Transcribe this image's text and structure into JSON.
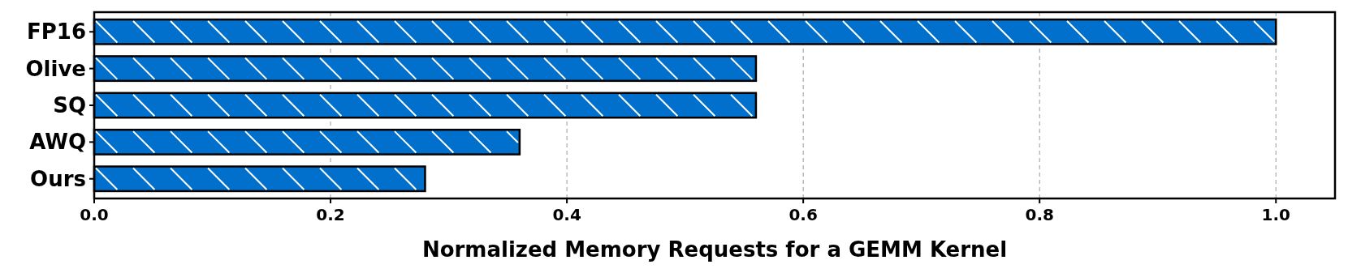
{
  "chart_data": {
    "type": "bar",
    "orientation": "horizontal",
    "xlabel": "Normalized Memory Requests for a GEMM Kernel",
    "categories": [
      "FP16",
      "Olive",
      "SQ",
      "AWQ",
      "Ours"
    ],
    "values": [
      1.0,
      0.56,
      0.56,
      0.36,
      0.28
    ],
    "color": "#0070cc",
    "xlim": [
      0,
      1.05
    ],
    "xticks": [
      {
        "value": 0,
        "label": "0.0"
      },
      0.2,
      0.4,
      0.6,
      0.8,
      {
        "value": 1,
        "label": "1.0"
      }
    ],
    "grid": "x"
  }
}
